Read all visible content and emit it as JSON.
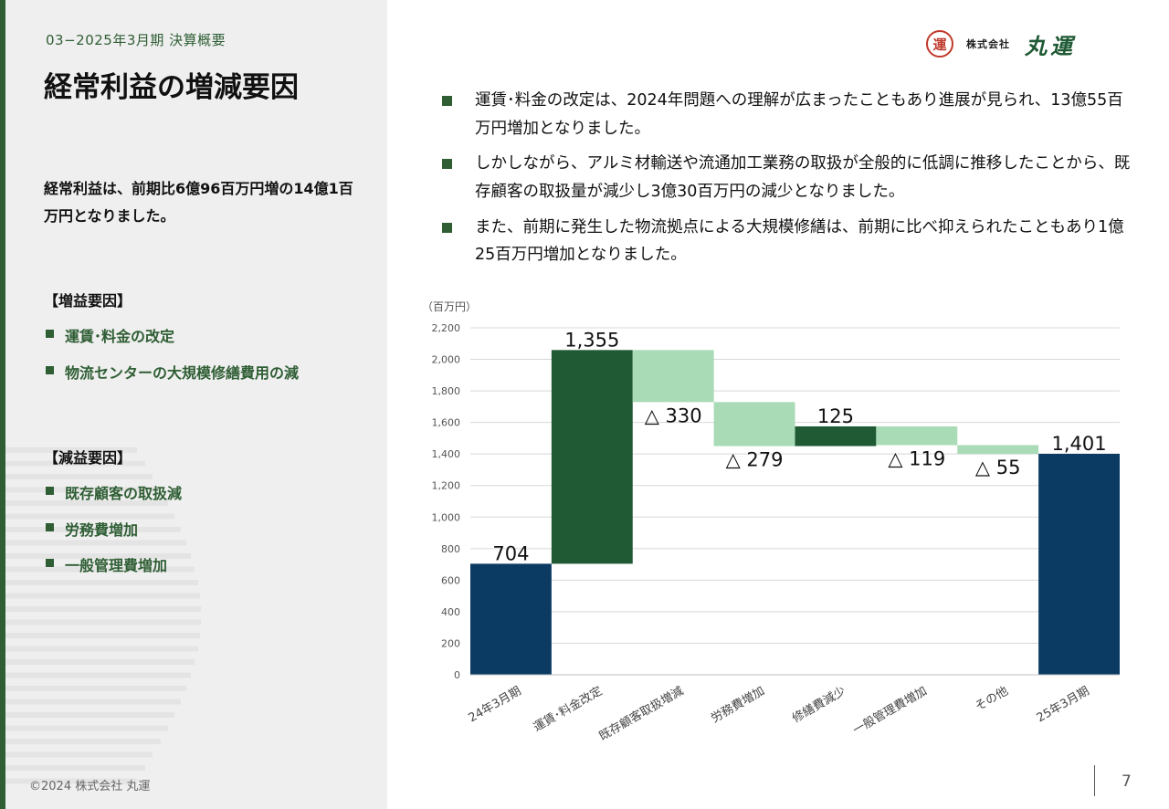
{
  "header": {
    "section_label": "03−2025年3月期 決算概要",
    "title": "経常利益の増減要因"
  },
  "left": {
    "summary": "経常利益は、前期比6億96百万円増の14億1百万円となりました。",
    "increase_heading": "【増益要因】",
    "increase_items": [
      "運賃･料金の改定",
      "物流センターの大規模修繕費用の減"
    ],
    "decrease_heading": "【減益要因】",
    "decrease_items": [
      "既存顧客の取扱減",
      "労務費増加",
      "一般管理費増加"
    ]
  },
  "bullets": [
    "運賃･料金の改定は、2024年問題への理解が広まったこともあり進展が見られ、13億55百万円増加となりました。",
    "しかしながら、アルミ材輸送や流通加工業務の取扱が全般的に低調に推移したことから、既存顧客の取扱量が減少し3億30百万円の減少となりました。",
    "また、前期に発生した物流拠点による大規模修繕は、前期に比べ抑えられたこともあり1億25百万円増加となりました。"
  ],
  "logo": {
    "mark": "運",
    "sub": "株式会社",
    "main": "丸運"
  },
  "footer": {
    "copyright": "©2024 株式会社 丸運",
    "page_number": "7"
  },
  "colors": {
    "accent_green": "#2f5e34",
    "dark_green": "#1f5a35",
    "light_green": "#a8dbb6",
    "navy": "#0b3a63"
  },
  "chart_data": {
    "type": "bar",
    "subtype": "waterfall",
    "unit_label": "（百万円）",
    "ylim": [
      0,
      2200
    ],
    "y_ticks": [
      0,
      200,
      400,
      600,
      800,
      1000,
      1200,
      1400,
      1600,
      1800,
      2000,
      2200
    ],
    "y_tick_labels": [
      "0",
      "200",
      "400",
      "600",
      "800",
      "1,000",
      "1,200",
      "1,400",
      "1,600",
      "1,800",
      "2,000",
      "2,200"
    ],
    "grid": true,
    "categories": [
      "24年3月期",
      "運賃･料金改定",
      "既存顧客取扱増減",
      "労務費増加",
      "修繕費減少",
      "一般管理費増加",
      "その他",
      "25年3月期"
    ],
    "values": [
      704,
      1355,
      -330,
      -279,
      125,
      -119,
      -55,
      1401
    ],
    "kinds": [
      "total",
      "increase",
      "decrease",
      "decrease",
      "increase",
      "decrease",
      "decrease",
      "total"
    ],
    "data_labels": [
      "704",
      "1,355",
      "△ 330",
      "△ 279",
      "125",
      "△ 119",
      "△ 55",
      "1,401"
    ]
  }
}
